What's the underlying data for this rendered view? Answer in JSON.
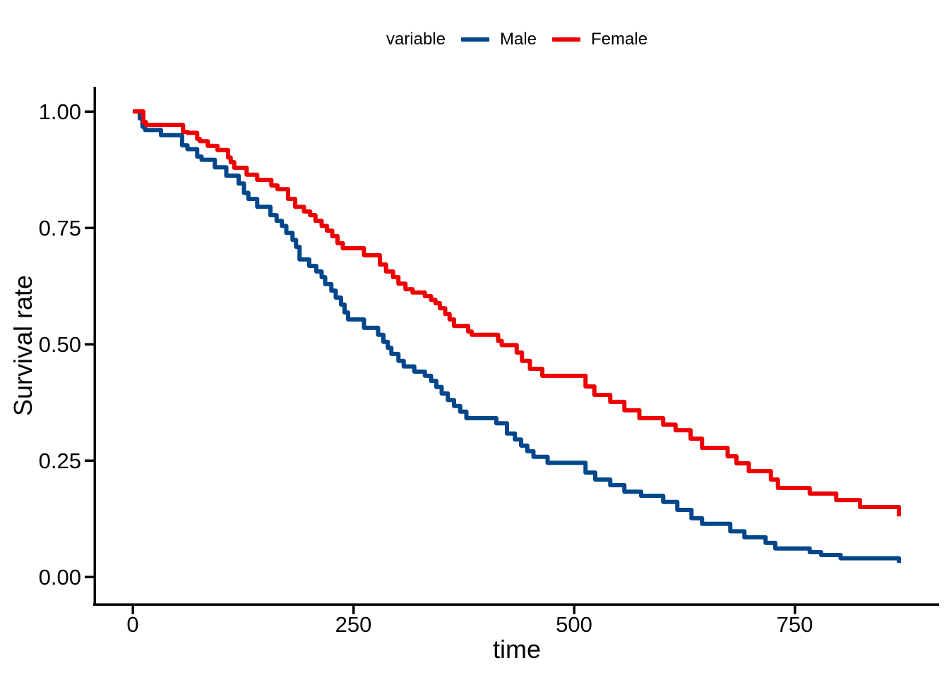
{
  "legend": {
    "title": "variable"
  },
  "chart_data": {
    "type": "line",
    "subtype": "kaplan-meier-step",
    "title": "",
    "xlabel": "time",
    "ylabel": "Survival rate",
    "xlim": [
      0,
      913
    ],
    "ylim": [
      0,
      1.0
    ],
    "x_ticks": [
      0,
      250,
      500,
      750
    ],
    "y_ticks": [
      {
        "value": 0.0,
        "label": "0.00"
      },
      {
        "value": 0.25,
        "label": "0.25"
      },
      {
        "value": 0.5,
        "label": "0.50"
      },
      {
        "value": 0.75,
        "label": "0.75"
      },
      {
        "value": 1.0,
        "label": "1.00"
      }
    ],
    "grid": false,
    "legend_position": "top",
    "axis_color": "#000000",
    "series": [
      {
        "name": "Male",
        "color": "#00468B",
        "points": [
          [
            0,
            1.0
          ],
          [
            8,
            0.985
          ],
          [
            11,
            0.967
          ],
          [
            14,
            0.96
          ],
          [
            32,
            0.949
          ],
          [
            56,
            0.927
          ],
          [
            62,
            0.919
          ],
          [
            73,
            0.903
          ],
          [
            78,
            0.896
          ],
          [
            93,
            0.88
          ],
          [
            106,
            0.862
          ],
          [
            120,
            0.845
          ],
          [
            126,
            0.825
          ],
          [
            131,
            0.812
          ],
          [
            141,
            0.795
          ],
          [
            156,
            0.777
          ],
          [
            163,
            0.765
          ],
          [
            169,
            0.754
          ],
          [
            174,
            0.739
          ],
          [
            181,
            0.724
          ],
          [
            185,
            0.709
          ],
          [
            189,
            0.682
          ],
          [
            200,
            0.668
          ],
          [
            208,
            0.656
          ],
          [
            214,
            0.644
          ],
          [
            218,
            0.629
          ],
          [
            225,
            0.615
          ],
          [
            230,
            0.6
          ],
          [
            236,
            0.585
          ],
          [
            240,
            0.568
          ],
          [
            244,
            0.553
          ],
          [
            262,
            0.535
          ],
          [
            278,
            0.52
          ],
          [
            284,
            0.505
          ],
          [
            289,
            0.492
          ],
          [
            293,
            0.479
          ],
          [
            301,
            0.464
          ],
          [
            307,
            0.452
          ],
          [
            319,
            0.441
          ],
          [
            331,
            0.432
          ],
          [
            338,
            0.421
          ],
          [
            344,
            0.408
          ],
          [
            350,
            0.394
          ],
          [
            357,
            0.38
          ],
          [
            364,
            0.367
          ],
          [
            371,
            0.355
          ],
          [
            378,
            0.341
          ],
          [
            412,
            0.33
          ],
          [
            424,
            0.308
          ],
          [
            433,
            0.295
          ],
          [
            440,
            0.282
          ],
          [
            447,
            0.27
          ],
          [
            454,
            0.258
          ],
          [
            470,
            0.245
          ],
          [
            513,
            0.224
          ],
          [
            524,
            0.209
          ],
          [
            541,
            0.197
          ],
          [
            557,
            0.183
          ],
          [
            576,
            0.174
          ],
          [
            601,
            0.161
          ],
          [
            617,
            0.144
          ],
          [
            633,
            0.126
          ],
          [
            645,
            0.114
          ],
          [
            677,
            0.098
          ],
          [
            693,
            0.085
          ],
          [
            717,
            0.073
          ],
          [
            728,
            0.061
          ],
          [
            767,
            0.053
          ],
          [
            780,
            0.047
          ],
          [
            802,
            0.04
          ],
          [
            868,
            0.03
          ]
        ]
      },
      {
        "name": "Female",
        "color": "#ED0000",
        "points": [
          [
            0,
            1.0
          ],
          [
            12,
            0.977
          ],
          [
            15,
            0.971
          ],
          [
            57,
            0.956
          ],
          [
            62,
            0.954
          ],
          [
            73,
            0.941
          ],
          [
            76,
            0.936
          ],
          [
            85,
            0.926
          ],
          [
            96,
            0.917
          ],
          [
            108,
            0.901
          ],
          [
            111,
            0.891
          ],
          [
            115,
            0.879
          ],
          [
            129,
            0.864
          ],
          [
            141,
            0.853
          ],
          [
            157,
            0.841
          ],
          [
            164,
            0.833
          ],
          [
            176,
            0.812
          ],
          [
            184,
            0.795
          ],
          [
            194,
            0.785
          ],
          [
            201,
            0.777
          ],
          [
            207,
            0.765
          ],
          [
            214,
            0.754
          ],
          [
            220,
            0.744
          ],
          [
            226,
            0.732
          ],
          [
            232,
            0.717
          ],
          [
            238,
            0.706
          ],
          [
            262,
            0.691
          ],
          [
            280,
            0.671
          ],
          [
            287,
            0.656
          ],
          [
            295,
            0.644
          ],
          [
            301,
            0.63
          ],
          [
            309,
            0.618
          ],
          [
            317,
            0.611
          ],
          [
            331,
            0.603
          ],
          [
            338,
            0.595
          ],
          [
            343,
            0.588
          ],
          [
            348,
            0.577
          ],
          [
            354,
            0.565
          ],
          [
            359,
            0.553
          ],
          [
            364,
            0.539
          ],
          [
            380,
            0.527
          ],
          [
            384,
            0.52
          ],
          [
            414,
            0.507
          ],
          [
            418,
            0.498
          ],
          [
            435,
            0.482
          ],
          [
            441,
            0.464
          ],
          [
            450,
            0.447
          ],
          [
            464,
            0.432
          ],
          [
            513,
            0.409
          ],
          [
            523,
            0.391
          ],
          [
            541,
            0.376
          ],
          [
            557,
            0.358
          ],
          [
            574,
            0.341
          ],
          [
            601,
            0.327
          ],
          [
            615,
            0.315
          ],
          [
            632,
            0.297
          ],
          [
            645,
            0.277
          ],
          [
            674,
            0.259
          ],
          [
            684,
            0.244
          ],
          [
            698,
            0.227
          ],
          [
            723,
            0.209
          ],
          [
            731,
            0.191
          ],
          [
            767,
            0.179
          ],
          [
            797,
            0.165
          ],
          [
            824,
            0.15
          ],
          [
            868,
            0.13
          ]
        ]
      }
    ]
  }
}
